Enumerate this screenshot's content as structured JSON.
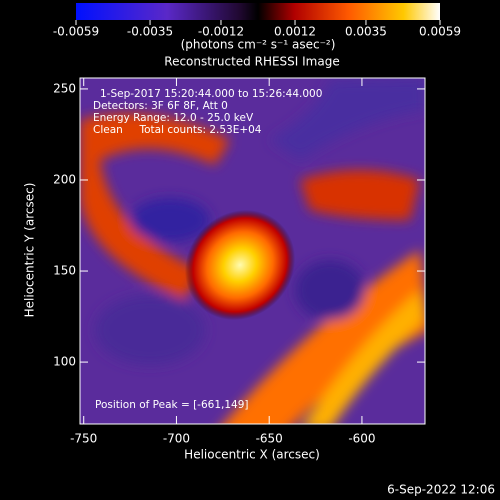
{
  "chart_data": {
    "type": "image",
    "title": "Reconstructed RHESSI Image",
    "xlabel": "Heliocentric X (arcsec)",
    "ylabel": "Heliocentric Y (arcsec)",
    "xlim": [
      -752,
      -566
    ],
    "xticks": [
      -750,
      -700,
      -650,
      -600
    ],
    "ylim": [
      66,
      256
    ],
    "yticks": [
      100,
      150,
      200,
      250
    ],
    "colorbar": {
      "lim": [
        -0.0059,
        0.0059
      ],
      "ticks": [
        -0.0059,
        -0.0035,
        -0.0012,
        0.0012,
        0.0035,
        0.0059
      ],
      "label": "(photons cm⁻² s⁻¹ asec⁻²)"
    },
    "annotations": [
      "1-Sep-2017 15:20:44.000 to 15:26:44.000",
      "Detectors: 3F 6F 8F, Att 0",
      "Energy Range: 12.0 - 25.0 keV",
      "Clean     Total counts: 2.53E+04",
      "Position of Peak = [-661,149]"
    ],
    "footer": "6-Sep-2022 12:06"
  }
}
